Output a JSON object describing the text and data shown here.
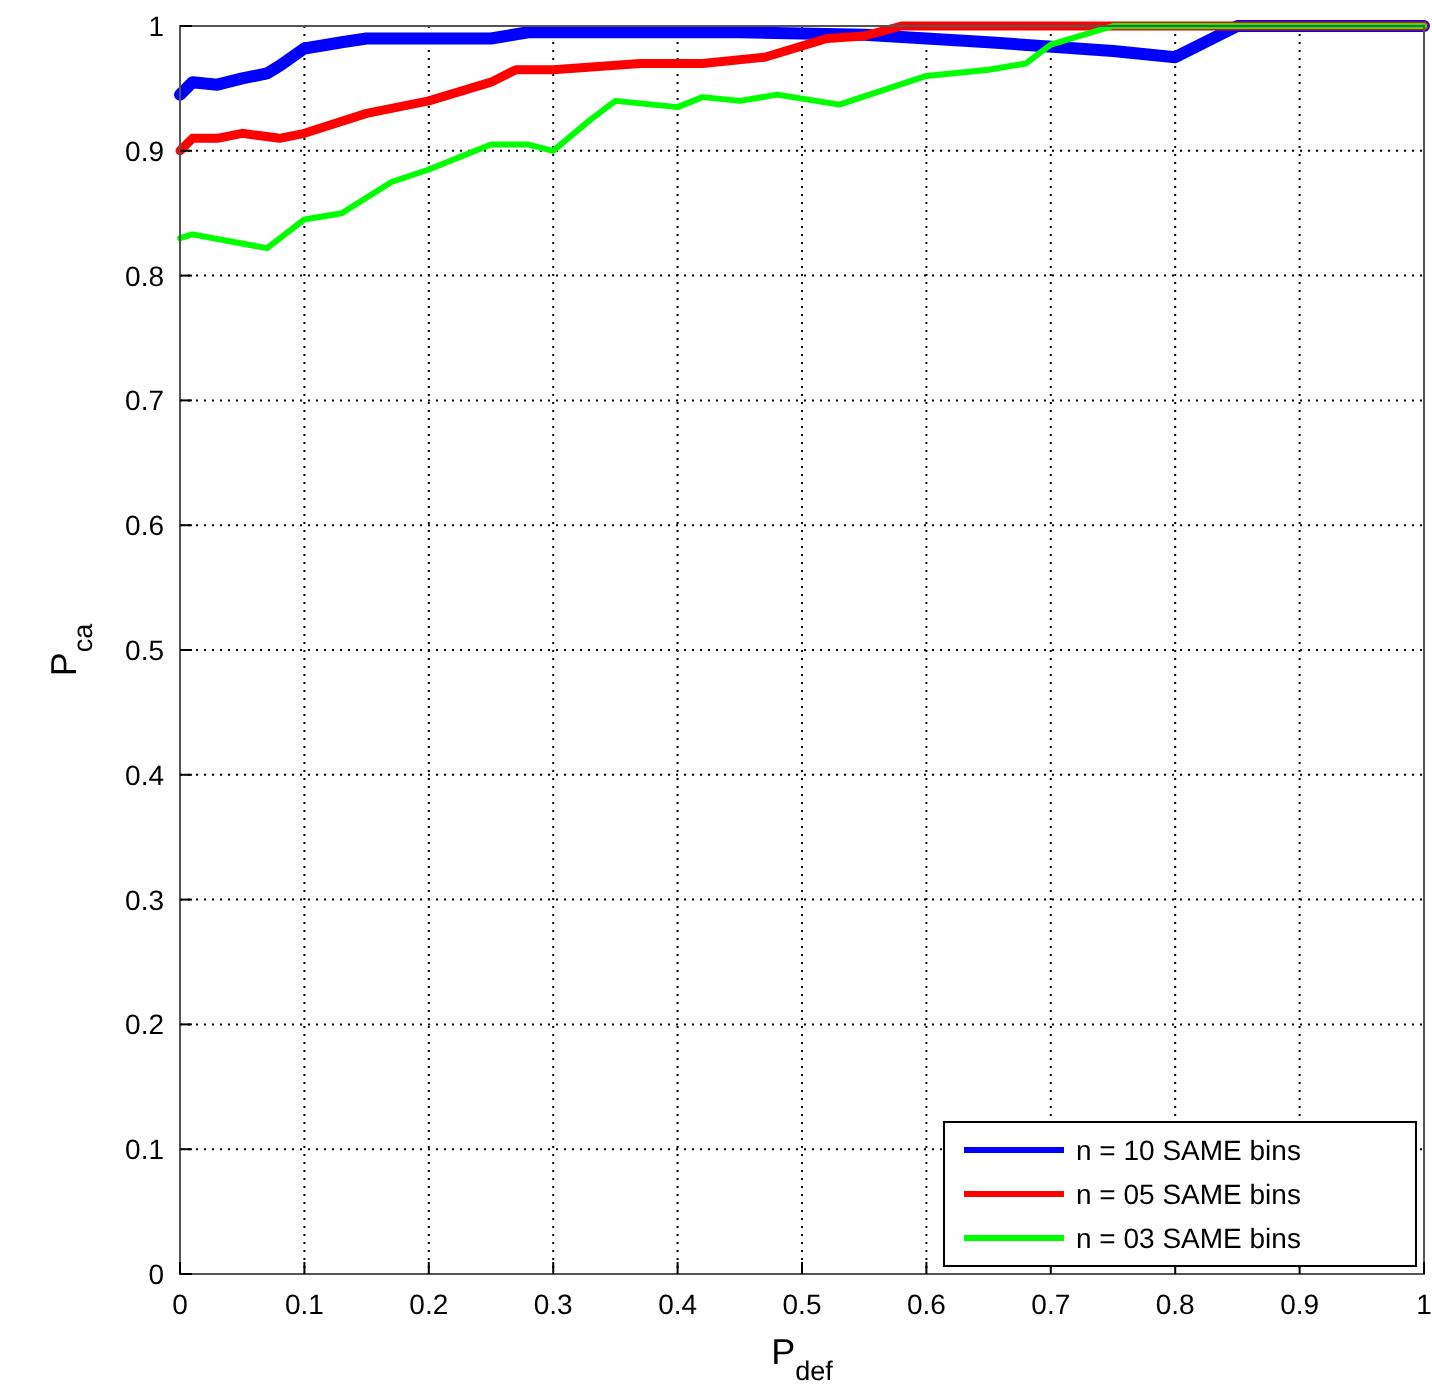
{
  "chart_data": {
    "type": "line",
    "xlabel": "P$_{def}$",
    "ylabel": "P$_{ca}$",
    "xlim": [
      0,
      1
    ],
    "ylim": [
      0,
      1
    ],
    "xticks": [
      0,
      0.1,
      0.2,
      0.3,
      0.4,
      0.5,
      0.6,
      0.7,
      0.8,
      0.9,
      1
    ],
    "yticks": [
      0,
      0.1,
      0.2,
      0.3,
      0.4,
      0.5,
      0.6,
      0.7,
      0.8,
      0.9,
      1
    ],
    "grid": true,
    "legend": "bottom right",
    "line_style": "solid",
    "series": [
      {
        "name": "n = 10 SAME bins",
        "color": "#0000ff",
        "x": [
          0,
          0.01,
          0.03,
          0.05,
          0.07,
          0.08,
          0.1,
          0.13,
          0.15,
          0.25,
          0.28,
          0.45,
          0.55,
          0.65,
          0.75,
          0.8,
          0.85,
          1
        ],
        "values": [
          0.945,
          0.955,
          0.953,
          0.958,
          0.962,
          0.968,
          0.982,
          0.987,
          0.99,
          0.99,
          0.995,
          0.995,
          0.993,
          0.987,
          0.98,
          0.975,
          1,
          1
        ]
      },
      {
        "name": "n = 05 SAME bins",
        "color": "#ff0000",
        "x": [
          0,
          0.01,
          0.03,
          0.05,
          0.08,
          0.1,
          0.15,
          0.2,
          0.25,
          0.27,
          0.3,
          0.37,
          0.42,
          0.47,
          0.52,
          0.55,
          0.58,
          1
        ],
        "values": [
          0.9,
          0.91,
          0.91,
          0.914,
          0.91,
          0.914,
          0.93,
          0.94,
          0.955,
          0.965,
          0.965,
          0.97,
          0.97,
          0.975,
          0.99,
          0.992,
          1,
          1
        ]
      },
      {
        "name": "n = 03 SAME bins",
        "color": "#00ff00",
        "x": [
          0,
          0.01,
          0.07,
          0.1,
          0.13,
          0.17,
          0.2,
          0.25,
          0.28,
          0.3,
          0.33,
          0.35,
          0.4,
          0.42,
          0.45,
          0.48,
          0.53,
          0.6,
          0.65,
          0.68,
          0.7,
          0.75,
          1
        ],
        "values": [
          0.83,
          0.833,
          0.822,
          0.845,
          0.85,
          0.875,
          0.885,
          0.905,
          0.905,
          0.9,
          0.925,
          0.94,
          0.935,
          0.943,
          0.94,
          0.945,
          0.937,
          0.96,
          0.965,
          0.97,
          0.985,
          1,
          1
        ]
      }
    ]
  }
}
